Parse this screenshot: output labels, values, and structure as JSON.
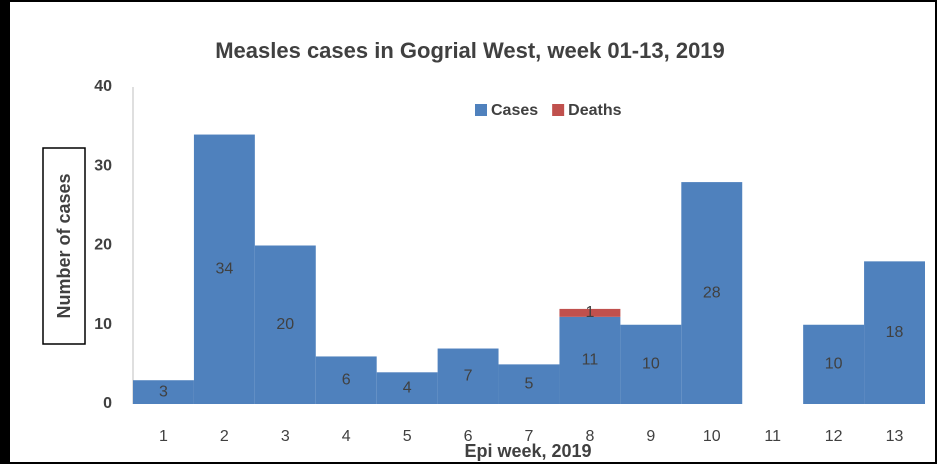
{
  "chart_data": {
    "type": "stacked_bar",
    "title": "Measles cases in Gogrial West, week 01-13, 2019",
    "x_label": "Epi week, 2019",
    "y_label": "Number of cases",
    "categories": [
      "1",
      "2",
      "3",
      "4",
      "5",
      "6",
      "7",
      "8",
      "9",
      "10",
      "11",
      "12",
      "13"
    ],
    "series": [
      {
        "name": "Cases",
        "color": "#4f81bd",
        "values": [
          3,
          34,
          20,
          6,
          4,
          7,
          5,
          11,
          10,
          28,
          null,
          10,
          18
        ]
      },
      {
        "name": "Deaths",
        "color": "#c0504d",
        "values": [
          null,
          null,
          null,
          null,
          null,
          null,
          null,
          1,
          null,
          null,
          null,
          null,
          null
        ]
      }
    ],
    "ylim": [
      0,
      40
    ],
    "yticks": [
      0,
      10,
      20,
      30,
      40
    ],
    "grid": false,
    "legend": "top"
  }
}
